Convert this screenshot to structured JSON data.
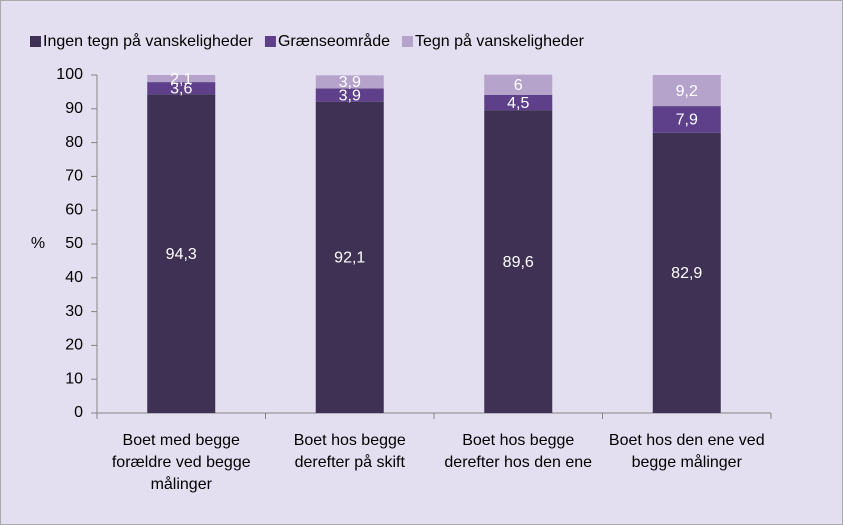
{
  "chart_data": {
    "type": "stacked-bar",
    "categories": [
      "Boet med begge forældre ved begge målinger",
      "Boet hos begge derefter på skift",
      "Boet hos begge derefter hos den ene",
      "Boet hos den ene ved begge målinger"
    ],
    "series": [
      {
        "name": "Ingen tegn på vanskeligheder",
        "color": "#3f3154",
        "values": [
          94.3,
          92.1,
          89.6,
          82.9
        ],
        "value_labels": [
          "94,3",
          "92,1",
          "89,6",
          "82,9"
        ]
      },
      {
        "name": "Grænseområde",
        "color": "#5e3f8a",
        "values": [
          3.6,
          3.9,
          4.5,
          7.9
        ],
        "value_labels": [
          "3,6",
          "3,9",
          "4,5",
          "7,9"
        ]
      },
      {
        "name": "Tegn på vanskeligheder",
        "color": "#b5a3cc",
        "values": [
          2.1,
          3.9,
          6,
          9.2
        ],
        "value_labels": [
          "2,1",
          "3,9",
          "6",
          "9,2"
        ]
      }
    ],
    "ylabel": "%",
    "ylim": [
      0,
      100
    ],
    "yticks": [
      0,
      10,
      20,
      30,
      40,
      50,
      60,
      70,
      80,
      90,
      100
    ],
    "legend": "top"
  }
}
